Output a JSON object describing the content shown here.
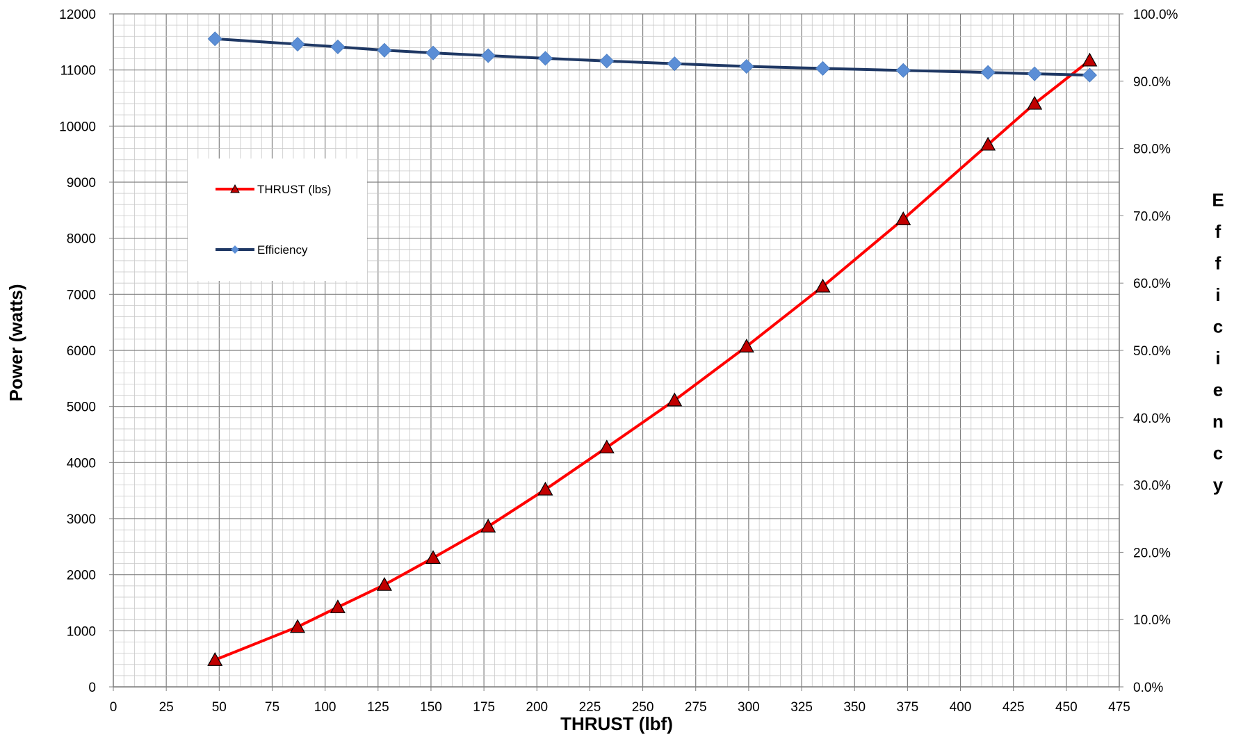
{
  "chart_data": {
    "type": "line",
    "title": "",
    "xlabel": "THRUST (lbf)",
    "ylabel": "Power (watts)",
    "y2label": "Efficiency",
    "xlim": [
      0,
      475
    ],
    "xticks": [
      0,
      25,
      50,
      75,
      100,
      125,
      150,
      175,
      200,
      225,
      250,
      275,
      300,
      325,
      350,
      375,
      400,
      425,
      450,
      475
    ],
    "ylim": [
      0,
      12000
    ],
    "yticks": [
      0,
      1000,
      2000,
      3000,
      4000,
      5000,
      6000,
      7000,
      8000,
      9000,
      10000,
      11000,
      12000
    ],
    "y2lim": [
      0,
      1.0
    ],
    "y2ticks": [
      "0.0%",
      "10.0%",
      "20.0%",
      "30.0%",
      "40.0%",
      "50.0%",
      "60.0%",
      "70.0%",
      "80.0%",
      "90.0%",
      "100.0%"
    ],
    "grid": true,
    "legend_position": "upper-left",
    "series": [
      {
        "name": "THRUST (lbs)",
        "axis": "left",
        "color": "#ff0000",
        "marker": "triangle",
        "marker_color": "#c00000",
        "x": [
          48,
          87,
          106,
          128,
          151,
          177,
          204,
          233,
          265,
          299,
          335,
          373,
          413,
          435,
          461
        ],
        "values": [
          480,
          1070,
          1420,
          1820,
          2300,
          2860,
          3520,
          4270,
          5110,
          6070,
          7140,
          8340,
          9670,
          10400,
          11170
        ]
      },
      {
        "name": "Efficiency",
        "axis": "right",
        "color": "#1f3864",
        "marker": "diamond",
        "marker_color": "#5b8ed6",
        "x": [
          48,
          87,
          106,
          128,
          151,
          177,
          204,
          233,
          265,
          299,
          335,
          373,
          413,
          435,
          461
        ],
        "values": [
          0.963,
          0.955,
          0.951,
          0.946,
          0.942,
          0.938,
          0.934,
          0.93,
          0.926,
          0.922,
          0.919,
          0.916,
          0.913,
          0.911,
          0.909
        ]
      }
    ]
  }
}
